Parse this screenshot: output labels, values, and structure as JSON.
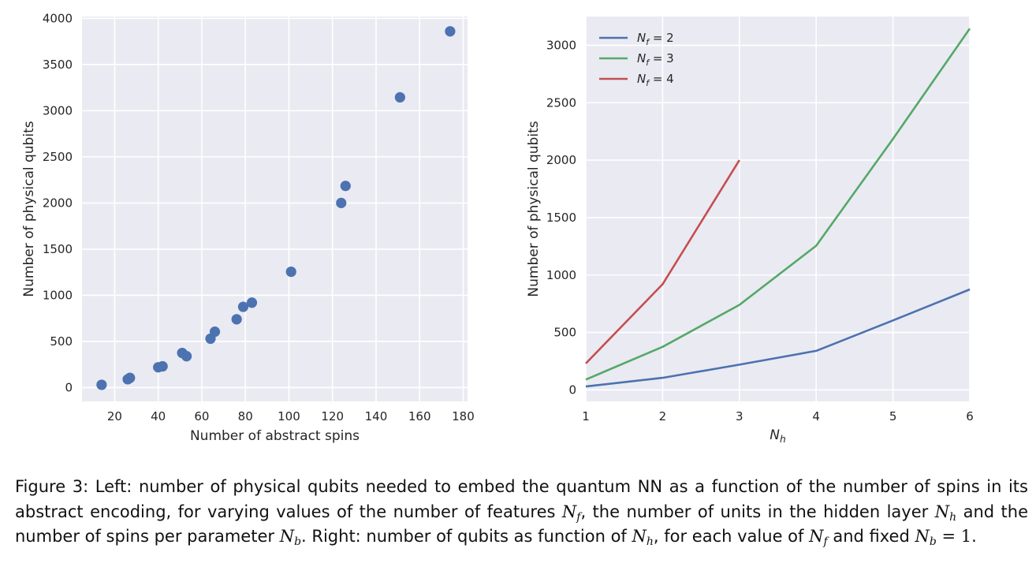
{
  "chart_data": [
    {
      "type": "scatter",
      "title": "",
      "xlabel": "Number of abstract spins",
      "ylabel": "Number of physical qubits",
      "xlim": [
        5,
        182
      ],
      "ylim": [
        -150,
        4020
      ],
      "xticks": [
        20,
        40,
        60,
        80,
        100,
        120,
        140,
        160,
        180
      ],
      "yticks": [
        0,
        500,
        1000,
        1500,
        2000,
        2500,
        3000,
        3500,
        4000
      ],
      "grid": true,
      "color": "#4c72b0",
      "points": [
        [
          14,
          30
        ],
        [
          26,
          90
        ],
        [
          27,
          105
        ],
        [
          40,
          220
        ],
        [
          42,
          230
        ],
        [
          51,
          375
        ],
        [
          53,
          340
        ],
        [
          64,
          530
        ],
        [
          66,
          605
        ],
        [
          76,
          740
        ],
        [
          79,
          875
        ],
        [
          83,
          920
        ],
        [
          101,
          1255
        ],
        [
          124,
          2000
        ],
        [
          126,
          2185
        ],
        [
          151,
          3145
        ],
        [
          174,
          3860
        ]
      ]
    },
    {
      "type": "line",
      "title": "",
      "xlabel": "N_h",
      "ylabel": "Number of physical qubits",
      "xlim": [
        1,
        6
      ],
      "ylim": [
        -100,
        3250
      ],
      "xticks": [
        1,
        2,
        3,
        4,
        5,
        6
      ],
      "yticks": [
        0,
        500,
        1000,
        1500,
        2000,
        2500,
        3000
      ],
      "grid": true,
      "legend_position": "upper-left",
      "series": [
        {
          "name": "N_f = 2",
          "color": "#4c72b0",
          "x": [
            1,
            2,
            3,
            4,
            5,
            6
          ],
          "values": [
            30,
            105,
            220,
            340,
            605,
            875
          ]
        },
        {
          "name": "N_f = 3",
          "color": "#55a868",
          "x": [
            1,
            2,
            3,
            4,
            5,
            6
          ],
          "values": [
            90,
            375,
            740,
            1255,
            2185,
            3145
          ]
        },
        {
          "name": "N_f = 4",
          "color": "#c44e52",
          "x": [
            1,
            2,
            3
          ],
          "values": [
            230,
            920,
            2000
          ]
        }
      ]
    }
  ],
  "caption": {
    "label": "Figure 3:",
    "t1": " Left: number of physical qubits needed to embed the quantum NN as a function of the number of spins in its abstract encoding, for varying values of the number of features ",
    "t2": ", the number of units in the hidden layer ",
    "t3": " and the number of spins per parameter ",
    "t4": ". Right: number of qubits as function of ",
    "t5": ", for each value of ",
    "t6": " and fixed ",
    "t7": "."
  }
}
